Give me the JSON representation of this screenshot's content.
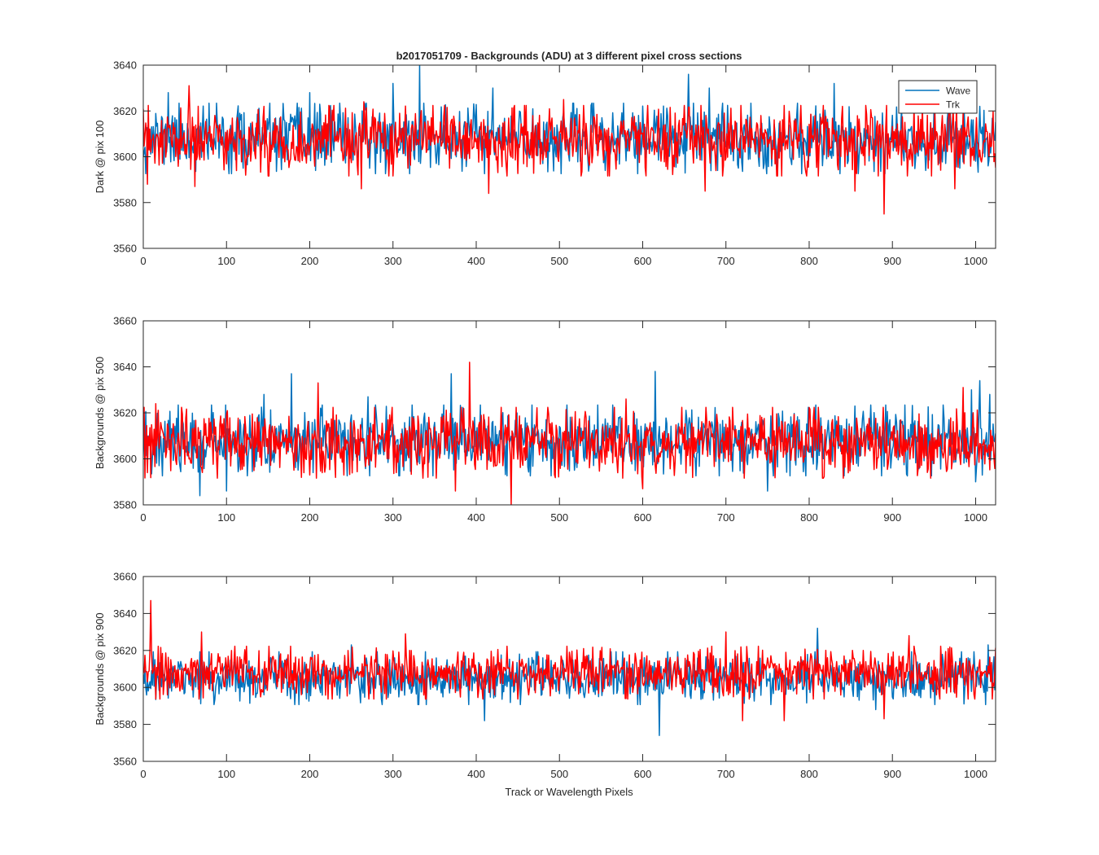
{
  "title": "b2017051709 - Backgrounds (ADU) at 3 different pixel cross sections",
  "xlabel": "Track or Wavelength Pixels",
  "legend": {
    "placement": "top-right",
    "entries": [
      {
        "name": "Wave",
        "color": "#0072BD"
      },
      {
        "name": "Trk",
        "color": "#FF0000"
      }
    ]
  },
  "colors": {
    "wave": "#0072BD",
    "trk": "#FF0000",
    "axes": "#262626"
  },
  "chart_data": [
    {
      "type": "line",
      "ylabel": "Dark @ pix 100",
      "xlim": [
        0,
        1024
      ],
      "ylim": [
        3560,
        3640
      ],
      "xticks": [
        0,
        100,
        200,
        300,
        400,
        500,
        600,
        700,
        800,
        900,
        1000
      ],
      "yticks": [
        3560,
        3580,
        3600,
        3620,
        3640
      ],
      "grid": false,
      "series": [
        {
          "name": "Wave",
          "color": "#0072BD",
          "mean": 3608,
          "sd": 7,
          "seed": 11,
          "peaks": [
            [
              30,
              3628
            ],
            [
              200,
              3628
            ],
            [
              300,
              3632
            ],
            [
              332,
              3640
            ],
            [
              420,
              3630
            ],
            [
              655,
              3636
            ],
            [
              680,
              3630
            ],
            [
              830,
              3632
            ],
            [
              1005,
              3622
            ]
          ],
          "dips": [
            [
              120,
              3595
            ],
            [
              555,
              3594
            ],
            [
              690,
              3594
            ],
            [
              940,
              3594
            ],
            [
              1015,
              3596
            ]
          ]
        },
        {
          "name": "Trk",
          "color": "#FF0000",
          "mean": 3607,
          "sd": 7,
          "seed": 23,
          "peaks": [
            [
              55,
              3631
            ],
            [
              145,
              3622
            ],
            [
              265,
              3624
            ],
            [
              505,
              3625
            ],
            [
              840,
              3622
            ]
          ],
          "dips": [
            [
              5,
              3588
            ],
            [
              62,
              3587
            ],
            [
              262,
              3586
            ],
            [
              415,
              3584
            ],
            [
              675,
              3585
            ],
            [
              855,
              3585
            ],
            [
              890,
              3575
            ],
            [
              975,
              3586
            ]
          ]
        }
      ]
    },
    {
      "type": "line",
      "ylabel": "Backgrounds @ pix 500",
      "xlim": [
        0,
        1024
      ],
      "ylim": [
        3580,
        3660
      ],
      "xticks": [
        0,
        100,
        200,
        300,
        400,
        500,
        600,
        700,
        800,
        900,
        1000
      ],
      "yticks": [
        3580,
        3600,
        3620,
        3640,
        3660
      ],
      "grid": false,
      "series": [
        {
          "name": "Wave",
          "color": "#0072BD",
          "mean": 3608,
          "sd": 7,
          "seed": 37,
          "peaks": [
            [
              145,
              3628
            ],
            [
              178,
              3637
            ],
            [
              270,
              3627
            ],
            [
              370,
              3637
            ],
            [
              615,
              3638
            ],
            [
              995,
              3630
            ],
            [
              1005,
              3634
            ],
            [
              1017,
              3628
            ]
          ],
          "dips": [
            [
              68,
              3584
            ],
            [
              100,
              3586
            ],
            [
              750,
              3586
            ],
            [
              1000,
              3590
            ]
          ]
        },
        {
          "name": "Trk",
          "color": "#FF0000",
          "mean": 3607,
          "sd": 7,
          "seed": 53,
          "peaks": [
            [
              15,
              3624
            ],
            [
              210,
              3633
            ],
            [
              392,
              3642
            ],
            [
              580,
              3626
            ],
            [
              985,
              3631
            ]
          ],
          "dips": [
            [
              5,
              3594
            ],
            [
              375,
              3586
            ],
            [
              442,
              3580
            ],
            [
              600,
              3587
            ]
          ]
        }
      ]
    },
    {
      "type": "line",
      "ylabel": "Backgrounds @ pix 900",
      "xlim": [
        0,
        1024
      ],
      "ylim": [
        3560,
        3660
      ],
      "xticks": [
        0,
        100,
        200,
        300,
        400,
        500,
        600,
        700,
        800,
        900,
        1000
      ],
      "yticks": [
        3560,
        3580,
        3600,
        3620,
        3640,
        3660
      ],
      "grid": false,
      "series": [
        {
          "name": "Wave",
          "color": "#0072BD",
          "mean": 3605,
          "sd": 6.5,
          "seed": 71,
          "peaks": [
            [
              250,
              3623
            ],
            [
              810,
              3632
            ],
            [
              1015,
              3623
            ]
          ],
          "dips": [
            [
              410,
              3582
            ],
            [
              620,
              3574
            ],
            [
              880,
              3588
            ]
          ]
        },
        {
          "name": "Trk",
          "color": "#FF0000",
          "mean": 3608,
          "sd": 6.5,
          "seed": 89,
          "peaks": [
            [
              9,
              3647
            ],
            [
              70,
              3630
            ],
            [
              315,
              3629
            ],
            [
              700,
              3630
            ],
            [
              920,
              3628
            ]
          ],
          "dips": [
            [
              720,
              3582
            ],
            [
              770,
              3582
            ],
            [
              890,
              3583
            ]
          ]
        }
      ]
    }
  ]
}
